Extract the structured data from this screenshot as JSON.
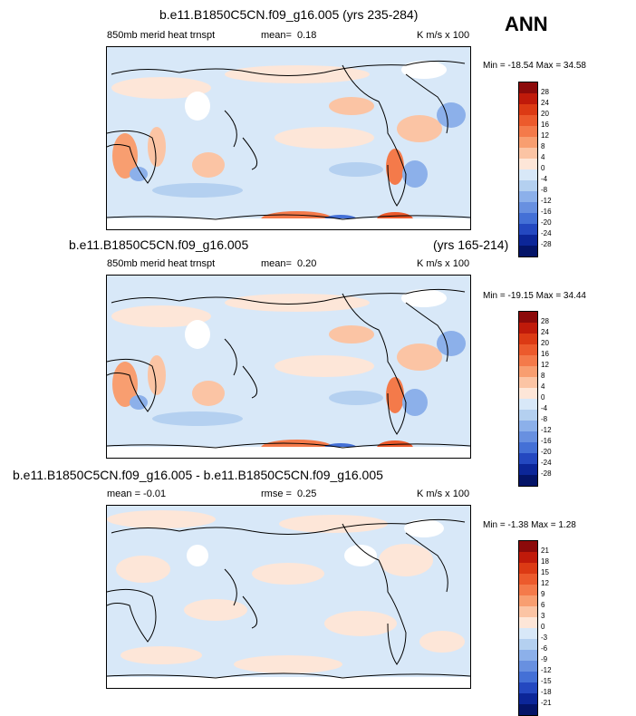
{
  "season": "ANN",
  "panels": [
    {
      "title": "b.e11.B1850C5CN.f09_g16.005 (yrs 235-284)",
      "left_label": "850mb merid heat trnspt",
      "stat_label": "mean=",
      "stat_value": "0.18",
      "units": "K m/s x 100",
      "minmax": "Min = -18.54 Max =  34.58",
      "colorbar_levels": [
        "28",
        "24",
        "20",
        "16",
        "12",
        "8",
        "4",
        "0",
        "-4",
        "-8",
        "-12",
        "-16",
        "-20",
        "-24",
        "-28"
      ]
    },
    {
      "title": "b.e11.B1850C5CN.f09_g16.005",
      "title_right": "(yrs 165-214)",
      "left_label": "850mb merid heat trnspt",
      "stat_label": "mean=",
      "stat_value": "0.20",
      "units": "K m/s x 100",
      "minmax": "Min = -19.15 Max =  34.44",
      "colorbar_levels": [
        "28",
        "24",
        "20",
        "16",
        "12",
        "8",
        "4",
        "0",
        "-4",
        "-8",
        "-12",
        "-16",
        "-20",
        "-24",
        "-28"
      ]
    },
    {
      "title": "b.e11.B1850C5CN.f09_g16.005 - b.e11.B1850C5CN.f09_g16.005",
      "left_label": "mean =  -0.01",
      "stat_label": "rmse =",
      "stat_value": "0.25",
      "units": "K m/s x 100",
      "minmax": "Min =  -1.38 Max =   1.28",
      "colorbar_levels": [
        "21",
        "18",
        "15",
        "12",
        "9",
        "6",
        "3",
        "0",
        "-3",
        "-6",
        "-9",
        "-12",
        "-15",
        "-18",
        "-21"
      ]
    }
  ],
  "colors": {
    "scale": [
      "#8c0a0a",
      "#c01a0a",
      "#dc3a14",
      "#ec5a2c",
      "#f47a4a",
      "#f89e70",
      "#fbc4a4",
      "#fde6d8",
      "#d8e8f8",
      "#b4d0f0",
      "#8cb0ea",
      "#6890e0",
      "#4470d6",
      "#2448c0",
      "#0c2698",
      "#041468"
    ]
  },
  "chart_data": [
    {
      "type": "heatmap",
      "title": "b.e11.B1850C5CN.f09_g16.005 (yrs 235-284)",
      "variable": "850mb merid heat trnspt",
      "mean": 0.18,
      "min": -18.54,
      "max": 34.58,
      "units": "K m/s x 100",
      "levels": [
        -28,
        -24,
        -20,
        -16,
        -12,
        -8,
        -4,
        0,
        4,
        8,
        12,
        16,
        20,
        24,
        28
      ]
    },
    {
      "type": "heatmap",
      "title": "b.e11.B1850C5CN.f09_g16.005 (yrs 165-214)",
      "variable": "850mb merid heat trnspt",
      "mean": 0.2,
      "min": -19.15,
      "max": 34.44,
      "units": "K m/s x 100",
      "levels": [
        -28,
        -24,
        -20,
        -16,
        -12,
        -8,
        -4,
        0,
        4,
        8,
        12,
        16,
        20,
        24,
        28
      ]
    },
    {
      "type": "heatmap",
      "title": "b.e11.B1850C5CN.f09_g16.005 - b.e11.B1850C5CN.f09_g16.005",
      "mean": -0.01,
      "rmse": 0.25,
      "min": -1.38,
      "max": 1.28,
      "units": "K m/s x 100",
      "levels": [
        -21,
        -18,
        -15,
        -12,
        -9,
        -6,
        -3,
        0,
        3,
        6,
        9,
        12,
        15,
        18,
        21
      ]
    }
  ]
}
